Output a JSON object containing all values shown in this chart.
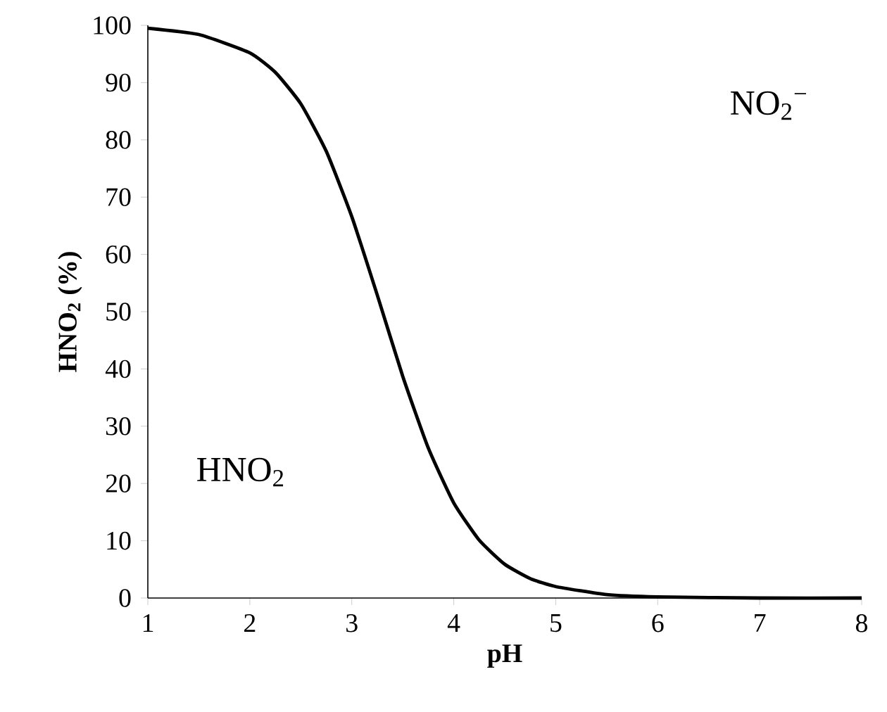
{
  "chart_data": {
    "type": "line",
    "xlabel": "pH",
    "ylabel": "**HNO$_{2}$  (%)**",
    "x": [
      1,
      1.5,
      2,
      2.25,
      2.5,
      2.75,
      3,
      3.25,
      3.5,
      3.75,
      4,
      4.25,
      4.5,
      4.75,
      5,
      5.5,
      6,
      7,
      8
    ],
    "series": [
      {
        "color": "#000000",
        "values": [
          99.5,
          98.4,
          95.2,
          91.8,
          86.3,
          78.0,
          66.6,
          52.9,
          38.7,
          26.2,
          16.6,
          10.1,
          5.9,
          3.4,
          2.0,
          0.6,
          0.2,
          0.0,
          0.0
        ]
      }
    ],
    "xlim": [
      1,
      8
    ],
    "ylim": [
      0,
      100
    ],
    "xticks": [
      1,
      2,
      3,
      4,
      5,
      6,
      7,
      8
    ],
    "yticks": [
      0,
      10,
      20,
      30,
      40,
      50,
      60,
      70,
      80,
      90,
      100
    ],
    "grid": false,
    "marker": "none",
    "line_style": "solid",
    "annotations": [
      "HNO$_{2}$",
      "NO$_{2}$$^{−}$"
    ]
  }
}
